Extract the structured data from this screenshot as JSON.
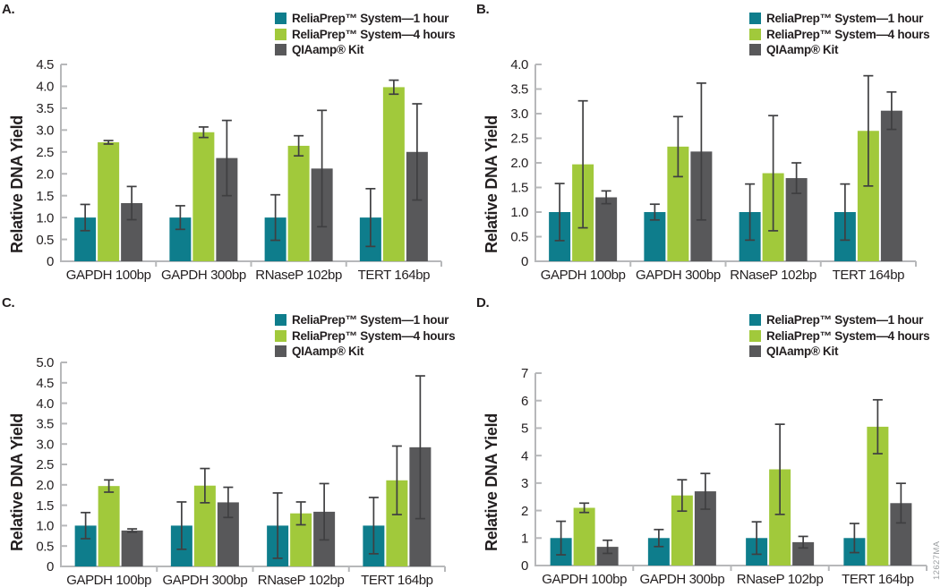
{
  "figure": {
    "watermark": "12627MA",
    "ylabel": "Relative DNA Yield",
    "categories": [
      "GAPDH 100bp",
      "GAPDH 300bp",
      "RNaseP 102bp",
      "TERT 164bp"
    ],
    "legend": [
      {
        "label": "ReliaPrep™ System—1 hour",
        "color": "#0E7D8C"
      },
      {
        "label": "ReliaPrep™ System—4 hours",
        "color": "#A1C93B"
      },
      {
        "label": "QIAamp® Kit",
        "color": "#58585A"
      }
    ],
    "colors": {
      "axis": "#B7B8BA",
      "error_bar": "#3F3F41",
      "text": "#231F20",
      "watermark": "#9DA0A3"
    }
  },
  "chart_data": [
    {
      "type": "bar",
      "panel": "A.",
      "title": "",
      "xlabel": "",
      "ylabel": "Relative DNA Yield",
      "grid": false,
      "legend_position": "top-right",
      "ylim": [
        0,
        4.5
      ],
      "ytick_step": 0.5,
      "categories": [
        "GAPDH 100bp",
        "GAPDH 300bp",
        "RNaseP 102bp",
        "TERT 164bp"
      ],
      "series": [
        {
          "name": "ReliaPrep™ System—1 hour",
          "color": "#0E7D8C",
          "values": [
            1.0,
            1.0,
            1.0,
            1.0
          ],
          "errors": [
            0.3,
            0.27,
            0.52,
            0.66
          ]
        },
        {
          "name": "ReliaPrep™ System—4 hours",
          "color": "#A1C93B",
          "values": [
            2.72,
            2.95,
            2.64,
            3.98
          ],
          "errors": [
            0.04,
            0.12,
            0.23,
            0.16
          ]
        },
        {
          "name": "QIAamp® Kit",
          "color": "#58585A",
          "values": [
            1.33,
            2.36,
            2.12,
            2.5
          ],
          "errors": [
            0.38,
            0.86,
            1.33,
            1.1
          ]
        }
      ]
    },
    {
      "type": "bar",
      "panel": "B.",
      "title": "",
      "xlabel": "",
      "ylabel": "Relative DNA Yield",
      "grid": false,
      "legend_position": "top-right",
      "ylim": [
        0,
        4.0
      ],
      "ytick_step": 0.5,
      "categories": [
        "GAPDH 100bp",
        "GAPDH 300bp",
        "RNaseP 102bp",
        "TERT 164bp"
      ],
      "series": [
        {
          "name": "ReliaPrep™ System—1 hour",
          "color": "#0E7D8C",
          "values": [
            1.0,
            1.0,
            1.0,
            1.0
          ],
          "errors": [
            0.58,
            0.16,
            0.57,
            0.57
          ]
        },
        {
          "name": "ReliaPrep™ System—4 hours",
          "color": "#A1C93B",
          "values": [
            1.97,
            2.33,
            1.79,
            2.65
          ],
          "errors": [
            1.29,
            0.61,
            1.17,
            1.12
          ]
        },
        {
          "name": "QIAamp® Kit",
          "color": "#58585A",
          "values": [
            1.3,
            2.23,
            1.69,
            3.06
          ],
          "errors": [
            0.13,
            1.39,
            0.31,
            0.38
          ]
        }
      ]
    },
    {
      "type": "bar",
      "panel": "C.",
      "title": "",
      "xlabel": "",
      "ylabel": "Relative DNA Yield",
      "grid": false,
      "legend_position": "top-right",
      "ylim": [
        0,
        5.0
      ],
      "ytick_step": 0.5,
      "categories": [
        "GAPDH 100bp",
        "GAPDH 300bp",
        "RNaseP 102bp",
        "TERT 164bp"
      ],
      "series": [
        {
          "name": "ReliaPrep™ System—1 hour",
          "color": "#0E7D8C",
          "values": [
            1.0,
            1.0,
            1.0,
            1.0
          ],
          "errors": [
            0.32,
            0.58,
            0.8,
            0.69
          ]
        },
        {
          "name": "ReliaPrep™ System—4 hours",
          "color": "#A1C93B",
          "values": [
            1.97,
            1.98,
            1.3,
            2.11
          ],
          "errors": [
            0.15,
            0.42,
            0.28,
            0.84
          ]
        },
        {
          "name": "QIAamp® Kit",
          "color": "#58585A",
          "values": [
            0.88,
            1.57,
            1.34,
            2.92
          ],
          "errors": [
            0.04,
            0.37,
            0.69,
            1.75
          ]
        }
      ]
    },
    {
      "type": "bar",
      "panel": "D.",
      "title": "",
      "xlabel": "",
      "ylabel": "Relative DNA Yield",
      "grid": false,
      "legend_position": "top-right",
      "ylim": [
        0,
        7
      ],
      "ytick_step": 1,
      "categories": [
        "GAPDH 100bp",
        "GAPDH 300bp",
        "RNaseP 102bp",
        "TERT 164bp"
      ],
      "series": [
        {
          "name": "ReliaPrep™ System—1 hour",
          "color": "#0E7D8C",
          "values": [
            1.0,
            1.0,
            1.0,
            1.0
          ],
          "errors": [
            0.61,
            0.31,
            0.59,
            0.53
          ]
        },
        {
          "name": "ReliaPrep™ System—4 hours",
          "color": "#A1C93B",
          "values": [
            2.1,
            2.55,
            3.5,
            5.05
          ],
          "errors": [
            0.17,
            0.57,
            1.64,
            0.98
          ]
        },
        {
          "name": "QIAamp® Kit",
          "color": "#58585A",
          "values": [
            0.68,
            2.7,
            0.85,
            2.27
          ],
          "errors": [
            0.24,
            0.65,
            0.21,
            0.72
          ]
        }
      ]
    }
  ]
}
